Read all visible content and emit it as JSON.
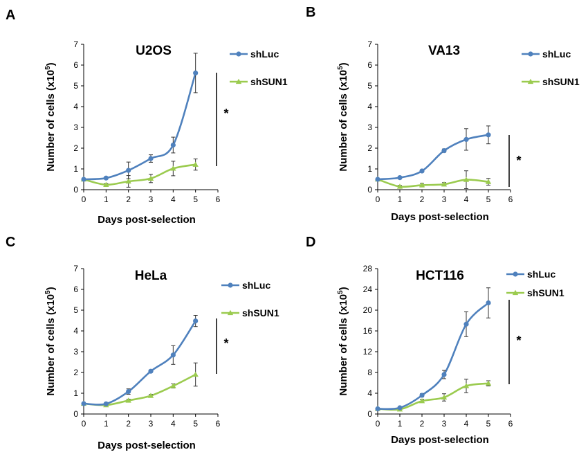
{
  "colors": {
    "shLuc": "#4f81bd",
    "shSUN1": "#9bcb4f",
    "errorbar": "#333333",
    "axis": "#000000"
  },
  "chart_data": [
    {
      "panel": "A",
      "type": "line",
      "title": "U2OS",
      "xlabel": "Days post-selection",
      "ylabel": "Number of cells (x10",
      "ylabel_sup": "5",
      "ylabel_end": ")",
      "xlim": [
        0,
        6
      ],
      "ylim": [
        0,
        7
      ],
      "xticks": [
        "0",
        "1",
        "2",
        "3",
        "4",
        "5",
        "6"
      ],
      "yticks": [
        "0",
        "1",
        "2",
        "3",
        "4",
        "5",
        "6",
        "7"
      ],
      "legend": "right",
      "significance": "*",
      "x": [
        0,
        1,
        2,
        3,
        4,
        5
      ],
      "series": [
        {
          "name": "shLuc",
          "marker": "circle",
          "values": [
            0.5,
            0.56,
            0.93,
            1.5,
            2.15,
            5.62
          ],
          "errors": [
            0.03,
            0.05,
            0.4,
            0.18,
            0.38,
            0.95
          ]
        },
        {
          "name": "shSUN1",
          "marker": "triangle",
          "values": [
            0.5,
            0.24,
            0.4,
            0.54,
            1.02,
            1.21
          ],
          "errors": [
            0.03,
            0.05,
            0.28,
            0.2,
            0.35,
            0.27
          ]
        }
      ]
    },
    {
      "panel": "B",
      "type": "line",
      "title": "VA13",
      "xlabel": "Days post-selection",
      "ylabel": "Number of cells (x10",
      "ylabel_sup": "5",
      "ylabel_end": ")",
      "xlim": [
        0,
        6
      ],
      "ylim": [
        0,
        7
      ],
      "xticks": [
        "0",
        "1",
        "2",
        "3",
        "4",
        "5",
        "6"
      ],
      "yticks": [
        "0",
        "1",
        "2",
        "3",
        "4",
        "5",
        "6",
        "7"
      ],
      "legend": "right",
      "significance": "*",
      "x": [
        0,
        1,
        2,
        3,
        4,
        5
      ],
      "series": [
        {
          "name": "shLuc",
          "marker": "circle",
          "values": [
            0.5,
            0.58,
            0.9,
            1.88,
            2.42,
            2.64
          ],
          "errors": [
            0.03,
            0.05,
            0.06,
            0.08,
            0.52,
            0.43
          ]
        },
        {
          "name": "shSUN1",
          "marker": "triangle",
          "values": [
            0.5,
            0.15,
            0.22,
            0.26,
            0.48,
            0.38
          ],
          "errors": [
            0.03,
            0.05,
            0.09,
            0.08,
            0.43,
            0.16
          ]
        }
      ]
    },
    {
      "panel": "C",
      "type": "line",
      "title": "HeLa",
      "xlabel": "Days post-selection",
      "ylabel": "Number of cells (x10",
      "ylabel_sup": "5",
      "ylabel_end": ")",
      "xlim": [
        0,
        6
      ],
      "ylim": [
        0,
        7
      ],
      "xticks": [
        "0",
        "1",
        "2",
        "3",
        "4",
        "5",
        "6"
      ],
      "yticks": [
        "0",
        "1",
        "2",
        "3",
        "4",
        "5",
        "6",
        "7"
      ],
      "legend": "right",
      "significance": "*",
      "x": [
        0,
        1,
        2,
        3,
        4,
        5
      ],
      "series": [
        {
          "name": "shLuc",
          "marker": "circle",
          "values": [
            0.5,
            0.49,
            1.08,
            2.06,
            2.84,
            4.48
          ],
          "errors": [
            0.04,
            0.05,
            0.13,
            0.05,
            0.45,
            0.27
          ]
        },
        {
          "name": "shSUN1",
          "marker": "triangle",
          "values": [
            0.5,
            0.43,
            0.65,
            0.88,
            1.35,
            1.9
          ],
          "errors": [
            0.04,
            0.05,
            0.06,
            0.06,
            0.1,
            0.56
          ]
        }
      ]
    },
    {
      "panel": "D",
      "type": "line",
      "title": "HCT116",
      "xlabel": "Days post-selection",
      "ylabel": "Number of cells (x10",
      "ylabel_sup": "5",
      "ylabel_end": ")",
      "xlim": [
        0,
        6
      ],
      "ylim": [
        0,
        28
      ],
      "xticks": [
        "0",
        "1",
        "2",
        "3",
        "4",
        "5",
        "6"
      ],
      "yticks": [
        "0",
        "4",
        "8",
        "12",
        "16",
        "20",
        "24",
        "28"
      ],
      "legend": "right",
      "significance": "*",
      "x": [
        0,
        1,
        2,
        3,
        4,
        5
      ],
      "series": [
        {
          "name": "shLuc",
          "marker": "circle",
          "values": [
            1.0,
            1.2,
            3.6,
            7.6,
            17.3,
            21.4
          ],
          "errors": [
            0.15,
            0.2,
            0.3,
            0.8,
            2.4,
            2.9
          ]
        },
        {
          "name": "shSUN1",
          "marker": "triangle",
          "values": [
            1.0,
            0.9,
            2.5,
            3.2,
            5.4,
            5.9
          ],
          "errors": [
            0.15,
            0.2,
            0.3,
            0.7,
            1.3,
            0.5
          ]
        }
      ]
    }
  ]
}
